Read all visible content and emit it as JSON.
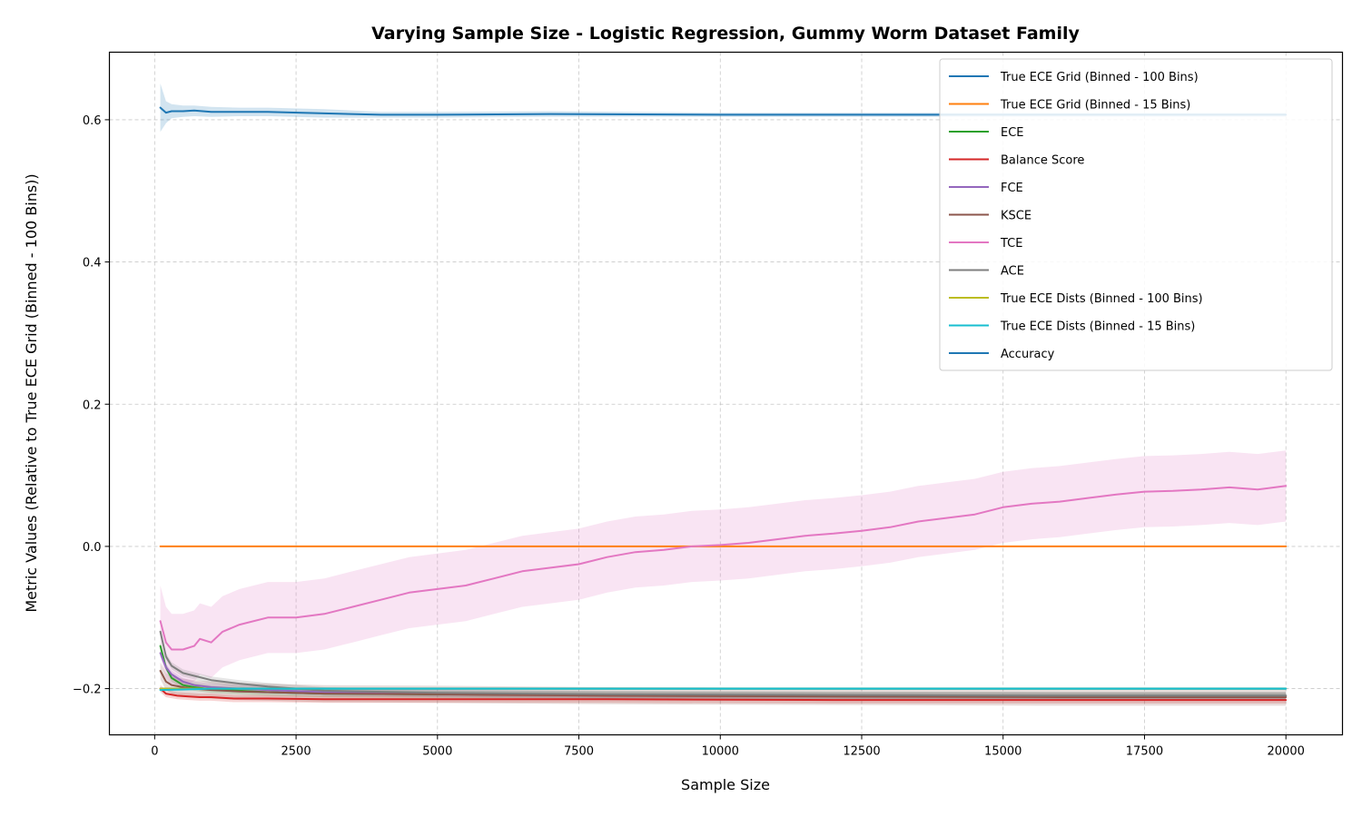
{
  "chart_data": {
    "type": "line",
    "title": "Varying Sample Size - Logistic Regression, Gummy Worm Dataset Family",
    "xlabel": "Sample Size",
    "ylabel": "Metric Values (Relative to True ECE Grid (Binned - 100 Bins))",
    "xlim": [
      -800,
      21000
    ],
    "ylim": [
      -0.265,
      0.695
    ],
    "xticks": [
      0,
      2500,
      5000,
      7500,
      10000,
      12500,
      15000,
      17500,
      20000
    ],
    "xtick_labels": [
      "0",
      "2500",
      "5000",
      "7500",
      "10000",
      "12500",
      "15000",
      "17500",
      "20000"
    ],
    "yticks": [
      -0.2,
      0.0,
      0.2,
      0.4,
      0.6
    ],
    "ytick_labels": [
      "−0.2",
      "0.0",
      "0.2",
      "0.4",
      "0.6"
    ],
    "grid": true,
    "legend_position": "top-right",
    "series": [
      {
        "name": "True ECE Grid (Binned - 100 Bins)",
        "color": "#1f77b4",
        "x": [
          100,
          20000
        ],
        "y": [
          -0.2,
          -0.2
        ],
        "band": 0
      },
      {
        "name": "True ECE Grid (Binned - 15 Bins)",
        "color": "#ff7f0e",
        "x": [
          100,
          20000
        ],
        "y": [
          0.0,
          0.0
        ],
        "band": 0
      },
      {
        "name": "ECE",
        "color": "#2ca02c",
        "x": [
          100,
          200,
          300,
          500,
          700,
          1000,
          1500,
          2000,
          3000,
          5000,
          8000,
          12000,
          16000,
          20000
        ],
        "y": [
          -0.14,
          -0.17,
          -0.185,
          -0.195,
          -0.198,
          -0.201,
          -0.203,
          -0.205,
          -0.207,
          -0.208,
          -0.209,
          -0.21,
          -0.21,
          -0.21
        ],
        "band": 0.005
      },
      {
        "name": "Balance Score",
        "color": "#d62728",
        "x": [
          100,
          200,
          400,
          600,
          800,
          1000,
          1400,
          2000,
          3000,
          5000,
          8000,
          12000,
          16000,
          20000
        ],
        "y": [
          -0.2,
          -0.207,
          -0.21,
          -0.211,
          -0.212,
          -0.212,
          -0.214,
          -0.214,
          -0.215,
          -0.215,
          -0.215,
          -0.216,
          -0.216,
          -0.216
        ],
        "band": 0.005
      },
      {
        "name": "FCE",
        "color": "#9467bd",
        "x": [
          100,
          200,
          300,
          500,
          700,
          1000,
          1500,
          2000,
          3000,
          5000,
          8000,
          12000,
          16000,
          20000
        ],
        "y": [
          -0.15,
          -0.17,
          -0.18,
          -0.19,
          -0.195,
          -0.198,
          -0.2,
          -0.202,
          -0.205,
          -0.207,
          -0.209,
          -0.21,
          -0.21,
          -0.21
        ],
        "band": 0.005
      },
      {
        "name": "KSCE",
        "color": "#8c564b",
        "x": [
          100,
          200,
          300,
          500,
          700,
          1000,
          1500,
          2000,
          3000,
          5000,
          8000,
          12000,
          16000,
          20000
        ],
        "y": [
          -0.175,
          -0.19,
          -0.195,
          -0.198,
          -0.2,
          -0.202,
          -0.204,
          -0.205,
          -0.207,
          -0.208,
          -0.21,
          -0.211,
          -0.212,
          -0.212
        ],
        "band": 0.012
      },
      {
        "name": "TCE",
        "color": "#e377c2",
        "x": [
          100,
          200,
          300,
          500,
          700,
          800,
          1000,
          1200,
          1500,
          2000,
          2500,
          3000,
          3500,
          4000,
          4500,
          5000,
          5500,
          6000,
          6500,
          7000,
          7500,
          8000,
          8500,
          9000,
          9500,
          10000,
          10500,
          11000,
          11500,
          12000,
          12500,
          13000,
          13500,
          14000,
          14500,
          15000,
          15500,
          16000,
          16500,
          17000,
          17500,
          18000,
          18500,
          19000,
          19500,
          20000
        ],
        "y": [
          -0.105,
          -0.135,
          -0.145,
          -0.145,
          -0.14,
          -0.13,
          -0.135,
          -0.12,
          -0.11,
          -0.1,
          -0.1,
          -0.095,
          -0.085,
          -0.075,
          -0.065,
          -0.06,
          -0.055,
          -0.045,
          -0.035,
          -0.03,
          -0.025,
          -0.015,
          -0.008,
          -0.005,
          0.0,
          0.002,
          0.005,
          0.01,
          0.015,
          0.018,
          0.022,
          0.027,
          0.035,
          0.04,
          0.045,
          0.055,
          0.06,
          0.063,
          0.068,
          0.073,
          0.077,
          0.078,
          0.08,
          0.083,
          0.08,
          0.085
        ],
        "band": 0.05
      },
      {
        "name": "ACE",
        "color": "#7f7f7f",
        "x": [
          100,
          200,
          300,
          500,
          700,
          1000,
          1500,
          2000,
          3000,
          5000,
          8000,
          12000,
          16000,
          20000
        ],
        "y": [
          -0.12,
          -0.155,
          -0.168,
          -0.178,
          -0.182,
          -0.188,
          -0.193,
          -0.197,
          -0.203,
          -0.206,
          -0.208,
          -0.209,
          -0.21,
          -0.21
        ],
        "band": 0.005
      },
      {
        "name": "True ECE Dists (Binned - 100 Bins)",
        "color": "#bcbd22",
        "x": [
          100,
          20000
        ],
        "y": [
          -0.2,
          -0.2
        ],
        "band": 0
      },
      {
        "name": "True ECE Dists (Binned - 15 Bins)",
        "color": "#17becf",
        "x": [
          100,
          1000,
          20000
        ],
        "y": [
          -0.202,
          -0.2,
          -0.2
        ],
        "band": 0.002
      },
      {
        "name": "Accuracy",
        "color": "#1f77b4",
        "x": [
          100,
          200,
          300,
          500,
          700,
          1000,
          1500,
          2000,
          3000,
          4000,
          5000,
          7000,
          10000,
          13000,
          16000,
          20000
        ],
        "y": [
          0.617,
          0.61,
          0.612,
          0.612,
          0.613,
          0.611,
          0.611,
          0.611,
          0.609,
          0.607,
          0.607,
          0.608,
          0.607,
          0.607,
          0.607,
          0.607
        ],
        "band_lower": [
          0.583,
          0.595,
          0.602,
          0.604,
          0.605,
          0.604,
          0.605,
          0.605,
          0.603,
          0.603,
          0.603,
          0.604,
          0.604,
          0.604,
          0.604,
          0.604
        ],
        "band_upper": [
          0.651,
          0.626,
          0.622,
          0.62,
          0.62,
          0.618,
          0.617,
          0.617,
          0.615,
          0.611,
          0.611,
          0.612,
          0.61,
          0.61,
          0.61,
          0.61
        ]
      }
    ]
  }
}
